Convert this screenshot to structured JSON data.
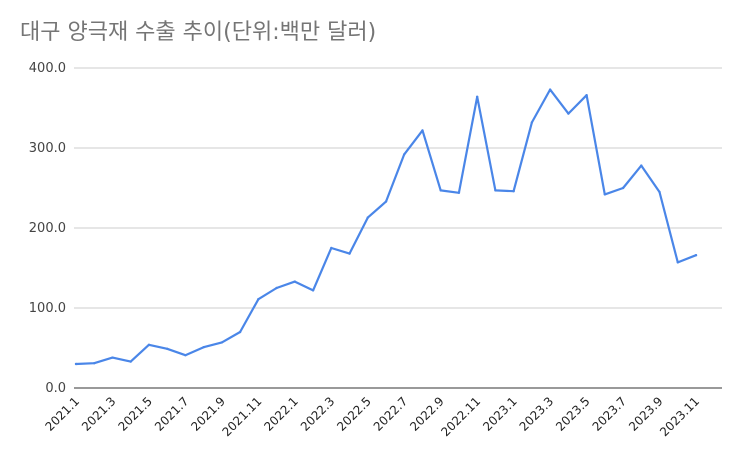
{
  "chart_data": {
    "type": "line",
    "title": "대구 양극재 수출 추이(단위:백만 달러)",
    "xlabel": "",
    "ylabel": "",
    "ylim": [
      0,
      400
    ],
    "yticks": [
      "0.0",
      "100.0",
      "200.0",
      "300.0",
      "400.0"
    ],
    "grid": true,
    "x": [
      "2021.1",
      "2021.2",
      "2021.3",
      "2021.4",
      "2021.5",
      "2021.6",
      "2021.7",
      "2021.8",
      "2021.9",
      "2021.10",
      "2021.11",
      "2021.12",
      "2022.1",
      "2022.2",
      "2022.3",
      "2022.4",
      "2022.5",
      "2022.6",
      "2022.7",
      "2022.8",
      "2022.9",
      "2022.10",
      "2022.11",
      "2022.12",
      "2023.1",
      "2023.2",
      "2023.3",
      "2023.4",
      "2023.5",
      "2023.6",
      "2023.7",
      "2023.8",
      "2023.9",
      "2023.10",
      "2023.11"
    ],
    "xtick_labels": [
      "2021.1",
      "2021.3",
      "2021.5",
      "2021.7",
      "2021.9",
      "2021.11",
      "2022.1",
      "2022.3",
      "2022.5",
      "2022.7",
      "2022.9",
      "2022.11",
      "2023.1",
      "2023.3",
      "2023.5",
      "2023.7",
      "2023.9",
      "2023.11"
    ],
    "series": [
      {
        "color": "#4a86e8",
        "values": [
          30,
          31,
          38,
          33,
          54,
          49,
          41,
          51,
          57,
          70,
          111,
          125,
          133,
          122,
          175,
          168,
          213,
          233,
          292,
          322,
          247,
          244,
          364,
          247,
          246,
          332,
          373,
          343,
          366,
          242,
          250,
          278,
          245,
          157,
          166
        ]
      }
    ]
  }
}
